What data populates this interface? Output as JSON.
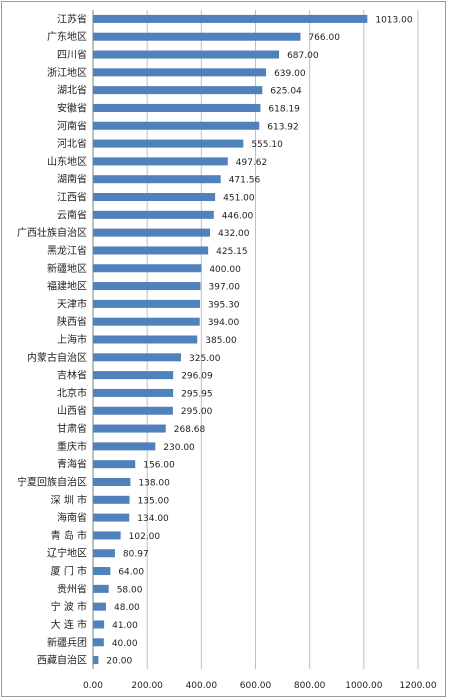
{
  "chart_data": {
    "type": "bar",
    "orientation": "horizontal",
    "categories": [
      "江苏省",
      "广东地区",
      "四川省",
      "浙江地区",
      "湖北省",
      "安徽省",
      "河南省",
      "河北省",
      "山东地区",
      "湖南省",
      "江西省",
      "云南省",
      "广西壮族自治区",
      "黑龙江省",
      "新疆地区",
      "福建地区",
      "天津市",
      "陕西省",
      "上海市",
      "内蒙古自治区",
      "吉林省",
      "北京市",
      "山西省",
      "甘肃省",
      "重庆市",
      "青海省",
      "宁夏回族自治区",
      "深 圳 市",
      "海南省",
      "青 岛 市",
      "辽宁地区",
      "厦 门 市",
      "贵州省",
      "宁 波 市",
      "大 连 市",
      "新疆兵团",
      "西藏自治区"
    ],
    "values": [
      1013.0,
      766.0,
      687.0,
      639.0,
      625.04,
      618.19,
      613.92,
      555.1,
      497.62,
      471.56,
      451.0,
      446.0,
      432.0,
      425.15,
      400.0,
      397.0,
      395.3,
      394.0,
      385.0,
      325.0,
      296.09,
      295.95,
      295.0,
      268.68,
      230.0,
      156.0,
      138.0,
      135.0,
      134.0,
      102.0,
      80.97,
      64.0,
      58.0,
      48.0,
      41.0,
      40.0,
      20.0
    ],
    "value_labels": [
      "1013.00",
      "766.00",
      "687.00",
      "639.00",
      "625.04",
      "618.19",
      "613.92",
      "555.10",
      "497.62",
      "471.56",
      "451.00",
      "446.00",
      "432.00",
      "425.15",
      "400.00",
      "397.00",
      "395.30",
      "394.00",
      "385.00",
      "325.00",
      "296.09",
      "295.95",
      "295.00",
      "268.68",
      "230.00",
      "156.00",
      "138.00",
      "135.00",
      "134.00",
      "102.00",
      "80.97",
      "64.00",
      "58.00",
      "48.00",
      "41.00",
      "40.00",
      "20.00"
    ],
    "xlim": [
      0,
      1200
    ],
    "x_ticks": [
      "0.00",
      "200.00",
      "400.00",
      "600.00",
      "800.00",
      "1000.00",
      "1200.00"
    ],
    "x_tick_values": [
      0,
      200,
      400,
      600,
      800,
      1000,
      1200
    ],
    "bar_color": "#4f81bd",
    "grid_color": "#bfbfbf",
    "grid": true,
    "legend": "none"
  }
}
